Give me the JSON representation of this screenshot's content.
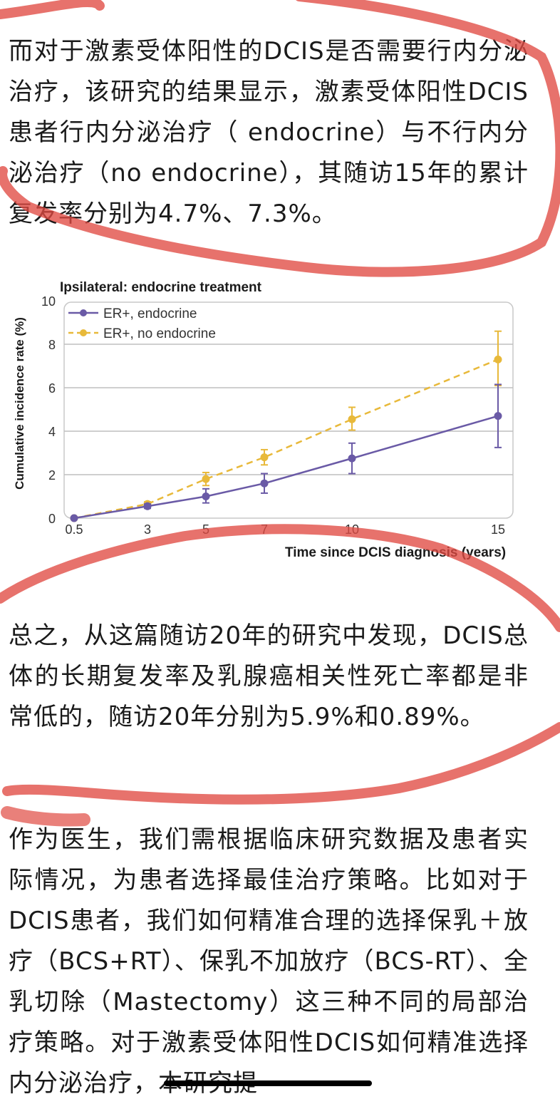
{
  "paragraphs": [
    "而对于激素受体阳性的DCIS是否需要行内分泌治疗，该研究的结果显示，激素受体阳性DCIS患者行内分泌治疗（ endocrine）与不行内分泌治疗（no endocrine），其随访15年的累计复发率分别为4.7%、7.3%。",
    "总之，从这篇随访20年的研究中发现，DCIS总体的长期复发率及乳腺癌相关性死亡率都是非常低的，随访20年分别为5.9%和0.89%。",
    "作为医生，我们需根据临床研究数据及患者实际情况，为患者选择最佳治疗策略。比如对于DCIS患者，我们如何精准合理的选择保乳＋放疗（BCS+RT）、保乳不加放疗（BCS-RT）、全乳切除（Mastectomy）这三种不同的局部治疗策略。对于激素受体阳性DCIS如何精准选择内分泌治疗，本研究提"
  ],
  "colors": {
    "endocrine": "#6a5aa6",
    "no_endocrine": "#e8b93a",
    "annotation": "#e04a42",
    "grid": "#bfbfbf"
  },
  "chart_data": {
    "type": "line",
    "title": "Ipsilateral: endocrine treatment",
    "xlabel": "Time since DCIS diagnosis (years)",
    "ylabel": "Cumulative incidence rate (%)",
    "x": [
      0.5,
      3,
      5,
      7,
      10,
      15
    ],
    "x_tick_labels": [
      "0.5",
      "3",
      "5",
      "7",
      "10",
      "15"
    ],
    "y_ticks": [
      0,
      2,
      4,
      6,
      8,
      10
    ],
    "ylim": [
      0,
      10
    ],
    "grid": "horizontal",
    "legend_position": "top-left",
    "series": [
      {
        "name": "ER+, endocrine",
        "style": "solid",
        "color": "#6a5aa6",
        "values": [
          0,
          0.55,
          1.0,
          1.6,
          2.75,
          4.7
        ],
        "err_low": [
          0,
          0.45,
          0.7,
          1.15,
          2.05,
          3.25
        ],
        "err_high": [
          0,
          0.65,
          1.35,
          2.05,
          3.45,
          6.15
        ]
      },
      {
        "name": "ER+, no endocrine",
        "style": "dashed",
        "color": "#e8b93a",
        "values": [
          0,
          0.65,
          1.8,
          2.8,
          4.55,
          7.3
        ],
        "err_low": [
          0,
          0.55,
          1.5,
          2.45,
          4.05,
          6.1
        ],
        "err_high": [
          0,
          0.75,
          2.1,
          3.15,
          5.1,
          8.6
        ]
      }
    ]
  }
}
